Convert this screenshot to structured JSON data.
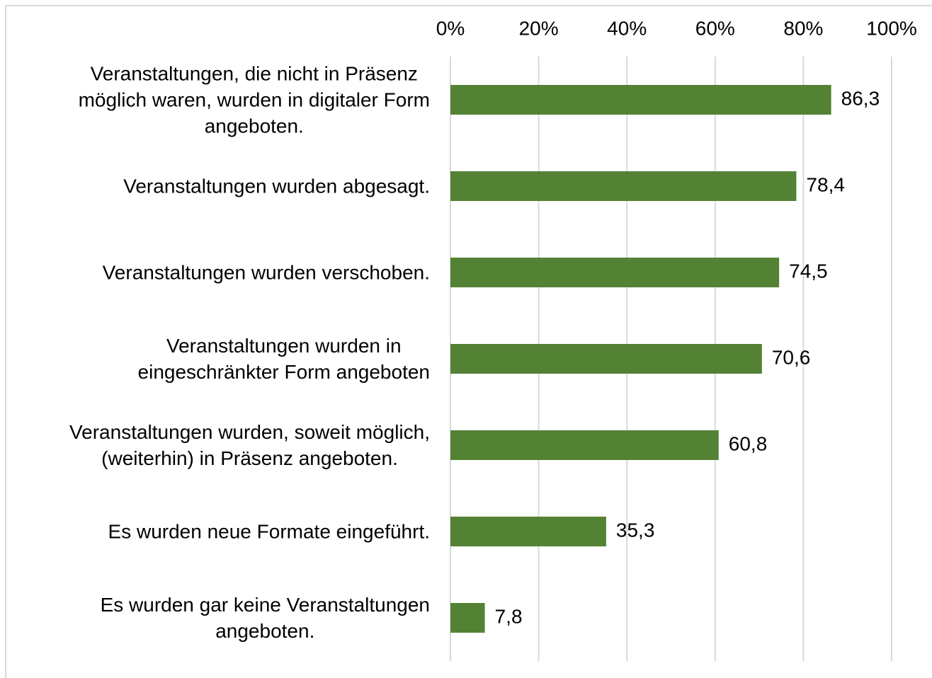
{
  "chart_data": {
    "type": "bar",
    "orientation": "horizontal",
    "categories": [
      "Veranstaltungen, die nicht in Präsenz\nmöglich waren, wurden in digitaler Form\nangeboten.",
      "Veranstaltungen wurden abgesagt.",
      "Veranstaltungen wurden verschoben.",
      "Veranstaltungen wurden in\neingeschränkter Form angeboten",
      "Veranstaltungen wurden, soweit möglich,\n(weiterhin) in Präsenz angeboten.",
      "Es wurden neue Formate eingeführt.",
      "Es wurden gar keine Veranstaltungen\nangeboten."
    ],
    "values": [
      86.3,
      78.4,
      74.5,
      70.6,
      60.8,
      35.3,
      7.8
    ],
    "value_labels": [
      "86,3",
      "78,4",
      "74,5",
      "70,6",
      "60,8",
      "35,3",
      "7,8"
    ],
    "color": "#548235",
    "xlim": [
      0,
      100
    ],
    "xticks": [
      {
        "value": 0,
        "label": "0%"
      },
      {
        "value": 20,
        "label": "20%"
      },
      {
        "value": 40,
        "label": "40%"
      },
      {
        "value": 60,
        "label": "60%"
      },
      {
        "value": 80,
        "label": "80%"
      },
      {
        "value": 100,
        "label": "100%"
      }
    ],
    "grid": true
  }
}
